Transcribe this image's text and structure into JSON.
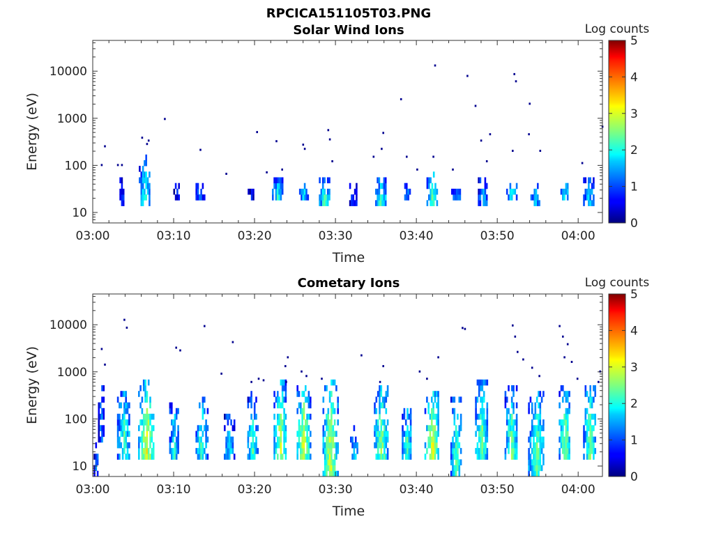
{
  "figure_title": "RPCICA151105T03.PNG",
  "chart_data": [
    {
      "type": "heatmap",
      "title": "Solar Wind Ions",
      "xlabel": "Time",
      "ylabel": "Energy (eV)",
      "x_ticks": [
        "03:00",
        "03:10",
        "03:20",
        "03:30",
        "03:40",
        "03:50",
        "04:00"
      ],
      "x_range_minutes_after_03_00": [
        0,
        63
      ],
      "y_scale": "log",
      "y_ticks": [
        10,
        100,
        1000,
        10000
      ],
      "y_range": [
        6,
        45000
      ],
      "colorbar": {
        "label": "Log counts",
        "range": [
          0,
          5
        ],
        "ticks": [
          0,
          1,
          2,
          3,
          4,
          5
        ],
        "colormap": "jet"
      },
      "bursts": [
        {
          "t": 3.6,
          "w": 0.6,
          "emin": 12,
          "emax": 45,
          "peak": 1.0
        },
        {
          "t": 6.4,
          "w": 1.4,
          "emin": 12,
          "emax": 130,
          "peak": 2.0
        },
        {
          "t": 10.3,
          "w": 0.7,
          "emin": 18,
          "emax": 40,
          "peak": 0.6
        },
        {
          "t": 13.2,
          "w": 1.0,
          "emin": 18,
          "emax": 40,
          "peak": 1.2
        },
        {
          "t": 19.6,
          "w": 0.9,
          "emin": 18,
          "emax": 30,
          "peak": 0.6
        },
        {
          "t": 22.8,
          "w": 1.3,
          "emin": 18,
          "emax": 45,
          "peak": 2.0
        },
        {
          "t": 26.0,
          "w": 1.0,
          "emin": 18,
          "emax": 40,
          "peak": 1.8
        },
        {
          "t": 28.6,
          "w": 1.3,
          "emin": 12,
          "emax": 45,
          "peak": 2.2
        },
        {
          "t": 32.2,
          "w": 1.0,
          "emin": 12,
          "emax": 35,
          "peak": 1.0
        },
        {
          "t": 35.6,
          "w": 1.4,
          "emin": 12,
          "emax": 45,
          "peak": 2.2
        },
        {
          "t": 38.8,
          "w": 1.0,
          "emin": 18,
          "emax": 45,
          "peak": 1.3
        },
        {
          "t": 41.9,
          "w": 1.3,
          "emin": 12,
          "emax": 70,
          "peak": 2.3
        },
        {
          "t": 44.9,
          "w": 1.2,
          "emin": 18,
          "emax": 40,
          "peak": 1.3
        },
        {
          "t": 48.2,
          "w": 1.2,
          "emin": 12,
          "emax": 50,
          "peak": 1.5
        },
        {
          "t": 51.8,
          "w": 1.4,
          "emin": 18,
          "emax": 40,
          "peak": 1.8
        },
        {
          "t": 54.7,
          "w": 1.2,
          "emin": 12,
          "emax": 35,
          "peak": 1.6
        },
        {
          "t": 58.3,
          "w": 1.0,
          "emin": 18,
          "emax": 40,
          "peak": 1.8
        },
        {
          "t": 61.3,
          "w": 1.4,
          "emin": 12,
          "emax": 45,
          "peak": 1.6
        }
      ],
      "sparse_points": [
        [
          1.4,
          250
        ],
        [
          1.0,
          100
        ],
        [
          3.0,
          100
        ],
        [
          3.5,
          100
        ],
        [
          6.0,
          380
        ],
        [
          6.8,
          330
        ],
        [
          6.6,
          280
        ],
        [
          8.8,
          950
        ],
        [
          13.2,
          210
        ],
        [
          16.4,
          65
        ],
        [
          20.2,
          500
        ],
        [
          21.4,
          70
        ],
        [
          22.6,
          320
        ],
        [
          23.3,
          80
        ],
        [
          25.9,
          270
        ],
        [
          26.1,
          220
        ],
        [
          29.0,
          550
        ],
        [
          29.2,
          350
        ],
        [
          29.5,
          120
        ],
        [
          34.6,
          150
        ],
        [
          35.8,
          480
        ],
        [
          35.6,
          220
        ],
        [
          38.0,
          2500
        ],
        [
          38.7,
          150
        ],
        [
          40.0,
          80
        ],
        [
          42.0,
          150
        ],
        [
          42.2,
          13000
        ],
        [
          44.4,
          80
        ],
        [
          46.2,
          7800
        ],
        [
          47.2,
          1800
        ],
        [
          47.9,
          330
        ],
        [
          48.6,
          120
        ],
        [
          49.0,
          450
        ],
        [
          51.8,
          200
        ],
        [
          52.0,
          8500
        ],
        [
          52.2,
          6000
        ],
        [
          53.9,
          2000
        ],
        [
          53.8,
          450
        ],
        [
          55.2,
          200
        ],
        [
          60.4,
          110
        ],
        [
          62.9,
          650
        ]
      ]
    },
    {
      "type": "heatmap",
      "title": "Cometary Ions",
      "xlabel": "Time",
      "ylabel": "Energy (eV)",
      "x_ticks": [
        "03:00",
        "03:10",
        "03:20",
        "03:30",
        "03:40",
        "03:50",
        "04:00"
      ],
      "x_range_minutes_after_03_00": [
        0,
        63
      ],
      "y_scale": "log",
      "y_ticks": [
        10,
        100,
        1000,
        10000
      ],
      "y_range": [
        6,
        45000
      ],
      "colorbar": {
        "label": "Log counts",
        "range": [
          0,
          5
        ],
        "ticks": [
          0,
          1,
          2,
          3,
          4,
          5
        ],
        "colormap": "jet"
      },
      "bursts": [
        {
          "t": 0.4,
          "w": 0.6,
          "emin": 6,
          "emax": 30,
          "peak": 1.2
        },
        {
          "t": 1.0,
          "w": 0.7,
          "emin": 30,
          "emax": 450,
          "peak": 1.2
        },
        {
          "t": 3.8,
          "w": 1.6,
          "emin": 12,
          "emax": 350,
          "peak": 2.2
        },
        {
          "t": 6.6,
          "w": 2.0,
          "emin": 12,
          "emax": 600,
          "peak": 3.0
        },
        {
          "t": 10.0,
          "w": 1.1,
          "emin": 12,
          "emax": 200,
          "peak": 2.0
        },
        {
          "t": 13.4,
          "w": 1.4,
          "emin": 12,
          "emax": 250,
          "peak": 2.2
        },
        {
          "t": 16.8,
          "w": 1.2,
          "emin": 12,
          "emax": 100,
          "peak": 1.8
        },
        {
          "t": 19.7,
          "w": 1.2,
          "emin": 12,
          "emax": 300,
          "peak": 2.2
        },
        {
          "t": 23.1,
          "w": 1.5,
          "emin": 12,
          "emax": 600,
          "peak": 2.8
        },
        {
          "t": 26.0,
          "w": 1.6,
          "emin": 12,
          "emax": 500,
          "peak": 2.9
        },
        {
          "t": 29.3,
          "w": 1.8,
          "emin": 6,
          "emax": 600,
          "peak": 2.9
        },
        {
          "t": 32.3,
          "w": 1.0,
          "emin": 12,
          "emax": 60,
          "peak": 1.6
        },
        {
          "t": 35.6,
          "w": 1.7,
          "emin": 12,
          "emax": 500,
          "peak": 2.6
        },
        {
          "t": 38.8,
          "w": 1.2,
          "emin": 12,
          "emax": 150,
          "peak": 2.2
        },
        {
          "t": 41.9,
          "w": 1.8,
          "emin": 12,
          "emax": 300,
          "peak": 3.0
        },
        {
          "t": 44.9,
          "w": 1.4,
          "emin": 6,
          "emax": 250,
          "peak": 2.3
        },
        {
          "t": 48.0,
          "w": 1.5,
          "emin": 12,
          "emax": 600,
          "peak": 2.5
        },
        {
          "t": 51.7,
          "w": 1.6,
          "emin": 12,
          "emax": 400,
          "peak": 2.4
        },
        {
          "t": 54.8,
          "w": 2.0,
          "emin": 6,
          "emax": 350,
          "peak": 2.4
        },
        {
          "t": 58.3,
          "w": 1.4,
          "emin": 12,
          "emax": 500,
          "peak": 2.6
        },
        {
          "t": 61.4,
          "w": 1.6,
          "emin": 12,
          "emax": 550,
          "peak": 2.4
        }
      ],
      "sparse_points": [
        [
          1.0,
          3000
        ],
        [
          1.4,
          1400
        ],
        [
          3.8,
          12500
        ],
        [
          4.1,
          8500
        ],
        [
          10.2,
          3200
        ],
        [
          10.7,
          2800
        ],
        [
          13.7,
          9200
        ],
        [
          15.8,
          900
        ],
        [
          17.2,
          4200
        ],
        [
          19.5,
          600
        ],
        [
          20.4,
          700
        ],
        [
          21.0,
          650
        ],
        [
          23.8,
          600
        ],
        [
          23.7,
          1300
        ],
        [
          24.0,
          2000
        ],
        [
          25.7,
          1000
        ],
        [
          26.3,
          800
        ],
        [
          28.2,
          700
        ],
        [
          33.1,
          2200
        ],
        [
          35.8,
          1300
        ],
        [
          35.4,
          600
        ],
        [
          40.3,
          1000
        ],
        [
          41.2,
          700
        ],
        [
          42.6,
          2000
        ],
        [
          45.6,
          8400
        ],
        [
          45.9,
          8000
        ],
        [
          51.8,
          9500
        ],
        [
          52.1,
          5500
        ],
        [
          52.4,
          2600
        ],
        [
          53.1,
          1800
        ],
        [
          54.2,
          1200
        ],
        [
          55.1,
          800
        ],
        [
          57.6,
          9200
        ],
        [
          58.0,
          5500
        ],
        [
          58.6,
          3800
        ],
        [
          58.2,
          2000
        ],
        [
          59.1,
          1600
        ],
        [
          59.8,
          700
        ],
        [
          62.4,
          600
        ],
        [
          62.6,
          1000
        ]
      ]
    }
  ]
}
